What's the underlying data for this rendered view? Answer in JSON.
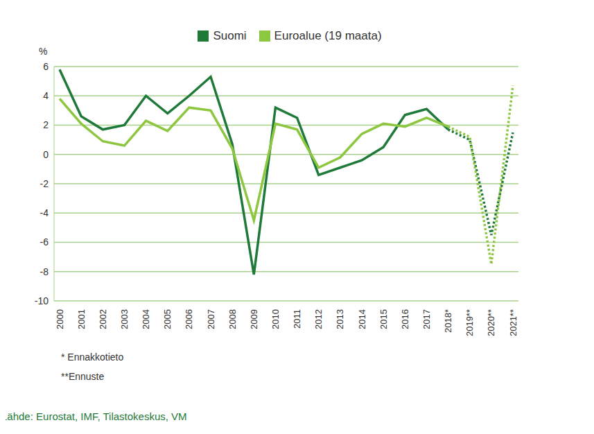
{
  "chart_data": {
    "type": "line",
    "y_unit_label": "%",
    "categories": [
      "2000",
      "2001",
      "2002",
      "2003",
      "2004",
      "2005",
      "2006",
      "2007",
      "2008",
      "2009",
      "2010",
      "2011",
      "2012",
      "2013",
      "2014",
      "2015",
      "2016",
      "2017",
      "2018*",
      "2019**",
      "2020**",
      "2021**"
    ],
    "series": [
      {
        "name": "Suomi",
        "color": "#1f7a3a",
        "values": [
          5.8,
          2.6,
          1.7,
          2.0,
          4.0,
          2.8,
          4.0,
          5.3,
          0.7,
          -8.2,
          3.2,
          2.5,
          -1.4,
          -0.9,
          -0.4,
          0.5,
          2.7,
          3.1,
          1.7,
          1.0,
          -5.5,
          1.5
        ]
      },
      {
        "name": "Euroalue (19 maata)",
        "color": "#8dc63f",
        "values": [
          3.8,
          2.1,
          0.9,
          0.6,
          2.3,
          1.6,
          3.2,
          3.0,
          0.4,
          -4.5,
          2.1,
          1.7,
          -0.9,
          -0.2,
          1.4,
          2.1,
          1.9,
          2.5,
          1.9,
          1.2,
          -7.5,
          4.7
        ]
      }
    ],
    "ylim": [
      -10,
      6
    ],
    "yticks": [
      -10,
      -8,
      -6,
      -4,
      -2,
      0,
      2,
      4,
      6
    ],
    "grid": true,
    "legend": "top",
    "notes": [
      "* Ennakkotieto",
      "**Ennuste"
    ],
    "source": "Lähde: Eurostat, IMF, Tilastokeskus, VM"
  }
}
